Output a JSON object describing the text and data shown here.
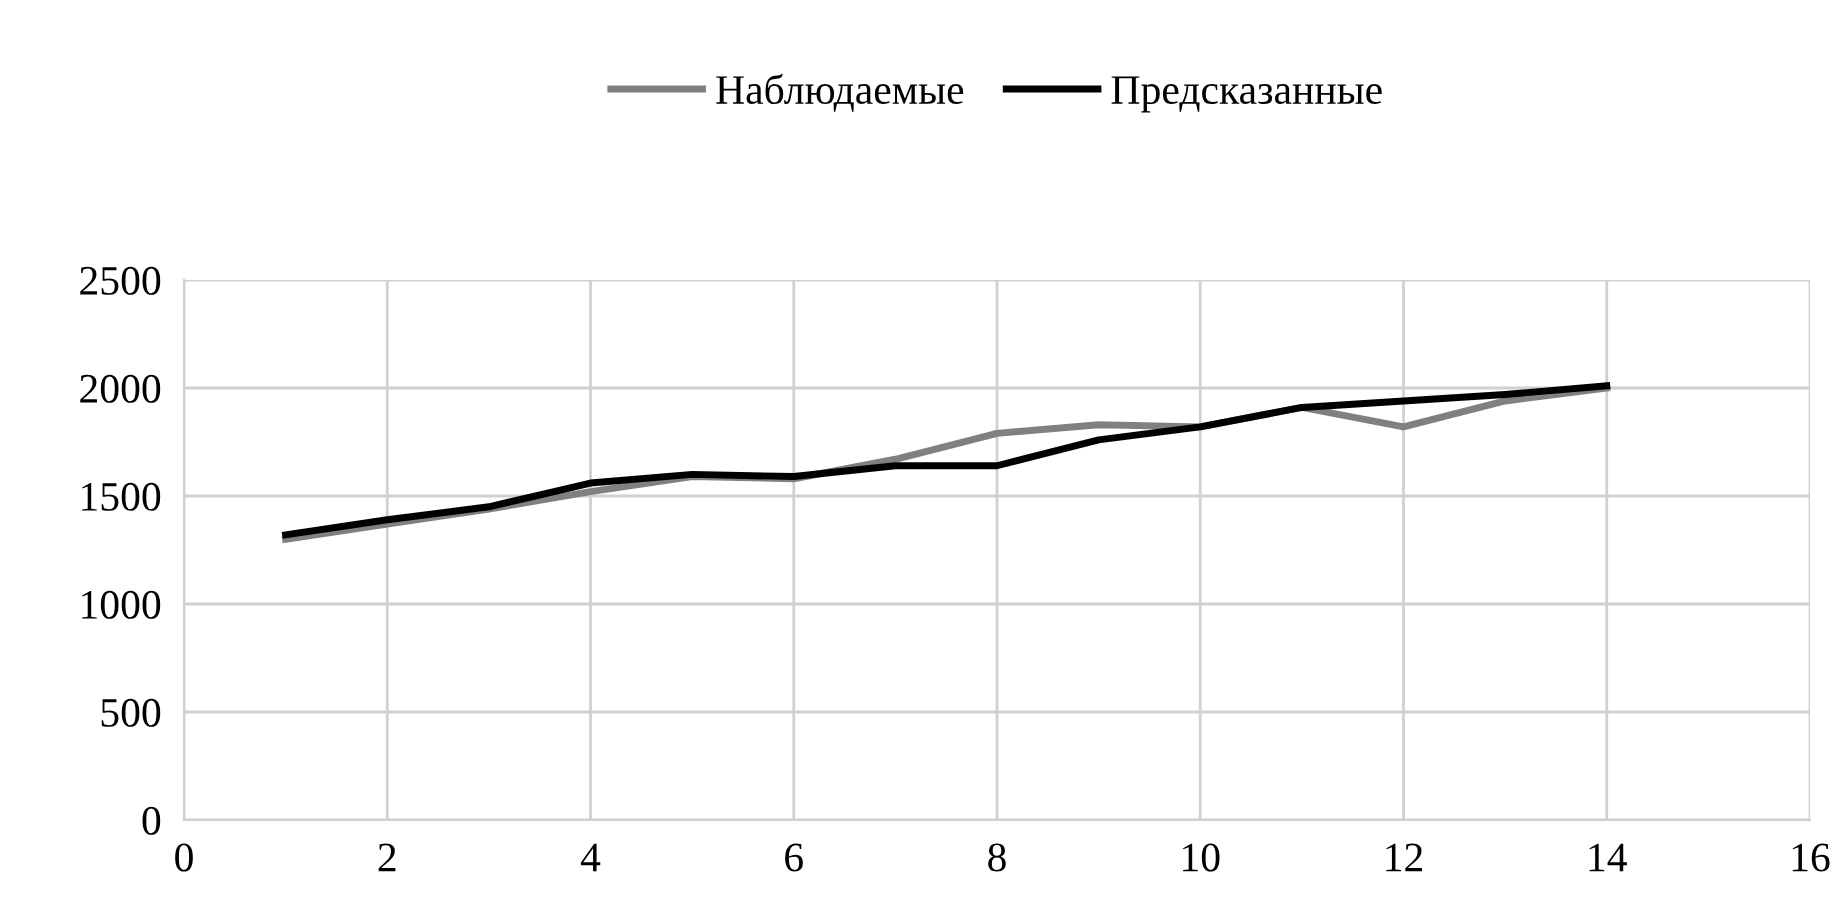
{
  "chart_data": {
    "type": "line",
    "x": [
      1,
      2,
      3,
      4,
      5,
      6,
      7,
      8,
      9,
      10,
      11,
      12,
      13,
      14
    ],
    "series": [
      {
        "name": "Наблюдаемые",
        "color": "#808080",
        "values": [
          1300,
          1370,
          1440,
          1520,
          1590,
          1580,
          1670,
          1790,
          1830,
          1820,
          1910,
          1820,
          1940,
          2000
        ]
      },
      {
        "name": "Предсказанные",
        "color": "#000000",
        "values": [
          1320,
          1390,
          1450,
          1560,
          1600,
          1590,
          1640,
          1640,
          1760,
          1820,
          1910,
          1940,
          1970,
          2010
        ]
      }
    ],
    "xlim": [
      0,
      16
    ],
    "xticks": [
      0,
      2,
      4,
      6,
      8,
      10,
      12,
      14,
      16
    ],
    "ylim": [
      0,
      2500
    ],
    "yticks": [
      0,
      500,
      1000,
      1500,
      2000,
      2500
    ],
    "grid": true,
    "legend": "top",
    "marker": "none",
    "line_style": "solid"
  }
}
